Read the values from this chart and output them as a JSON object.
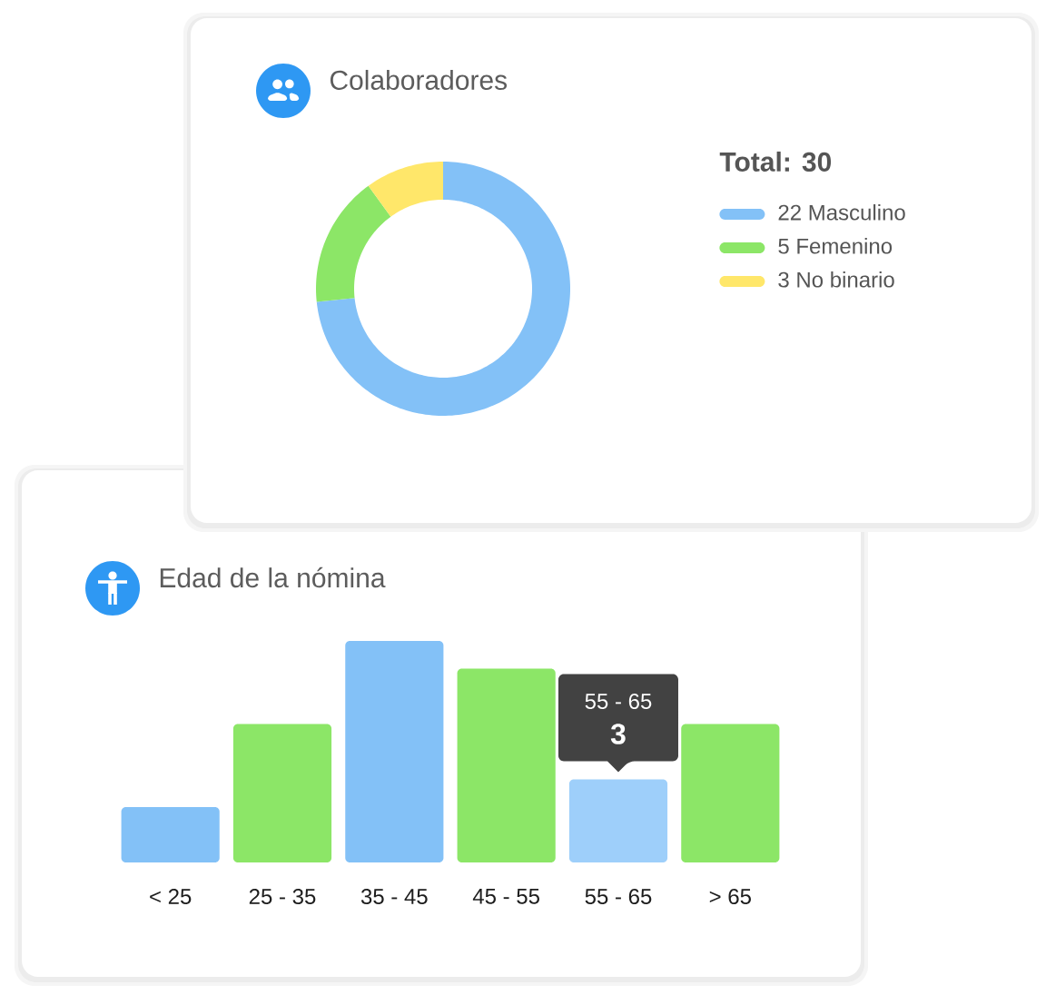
{
  "chart_data": [
    {
      "type": "donut",
      "title": "Colaboradores",
      "legend_title": "Total: 30",
      "categories": [
        "22 Masculino",
        "5 Femenino",
        "3 No binario"
      ],
      "values": [
        22,
        5,
        3
      ],
      "colors": [
        "#83c1f7",
        "#8ce667",
        "#ffe76a"
      ],
      "legend": "right"
    },
    {
      "type": "bar",
      "title": "Edad de la nómina",
      "categories": [
        "< 25",
        "25 - 35",
        "35 - 45",
        "45 - 55",
        "55 - 65",
        "> 65"
      ],
      "values": [
        2,
        5,
        8,
        7,
        3,
        5
      ],
      "colors": [
        "#83c1f7",
        "#8ce667",
        "#83c1f7",
        "#8ce667",
        "#9ecffa",
        "#8ce667"
      ],
      "value_labels": [
        null,
        null,
        null,
        null,
        "3",
        null
      ],
      "annotations": [
        "55 - 65"
      ],
      "tick_labels": "x"
    }
  ]
}
